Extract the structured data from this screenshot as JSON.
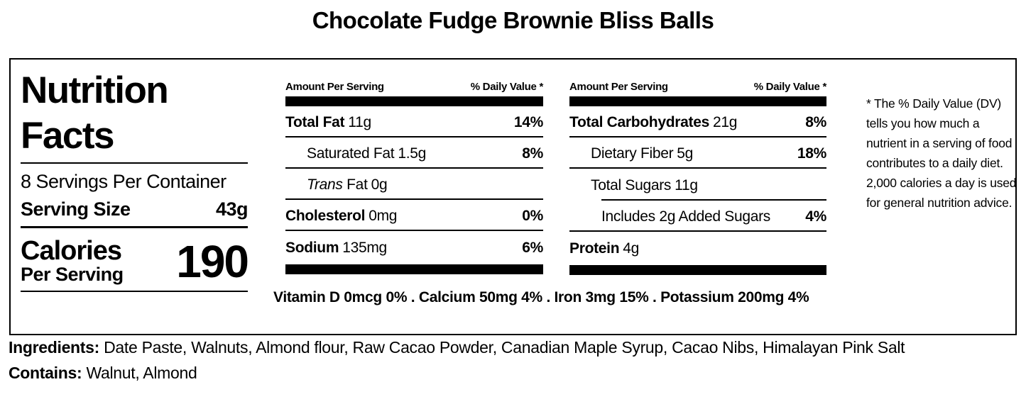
{
  "title": "Chocolate Fudge Brownie Bliss Balls",
  "panel": {
    "heading_line1": "Nutrition",
    "heading_line2": "Facts",
    "servings_per_container": "8 Servings Per Container",
    "serving_size": {
      "label": "Serving Size",
      "value": "43g"
    },
    "calories": {
      "label": "Calories",
      "sublabel": "Per Serving",
      "value": "190"
    }
  },
  "columns": [
    {
      "header_left": "Amount Per Serving",
      "header_right": "% Daily Value *",
      "rows": [
        {
          "name": "Total Fat",
          "amount": "11g",
          "dv": "14%"
        },
        {
          "name": "Saturated Fat",
          "amount": "1.5g",
          "dv": "8%"
        },
        {
          "name_italic": "Trans",
          "name": " Fat",
          "amount": "0g",
          "dv": ""
        },
        {
          "name": "Cholesterol",
          "amount": "0mg",
          "dv": "0%"
        },
        {
          "name": "Sodium",
          "amount": "135mg",
          "dv": "6%"
        }
      ]
    },
    {
      "header_left": "Amount Per Serving",
      "header_right": "% Daily Value *",
      "rows": [
        {
          "name": "Total Carbohydrates",
          "amount": "21g",
          "dv": "8%"
        },
        {
          "name": "Dietary Fiber",
          "amount": "5g",
          "dv": "18%"
        },
        {
          "name": "Total Sugars",
          "amount": "11g",
          "dv": ""
        },
        {
          "name": "Includes 2g Added Sugars",
          "amount": "",
          "dv": "4%"
        },
        {
          "name": "Protein",
          "amount": "4g",
          "dv": ""
        }
      ]
    }
  ],
  "micronutrients_line": "Vitamin D 0mcg 0% . Calcium 50mg 4% . Iron 3mg 15% . Potassium 200mg 4%",
  "footnote": "* The % Daily Value (DV) tells you how much a nutrient in a serving of food contributes to a daily diet. 2,000 calories a day is used for general nutrition advice.",
  "ingredients": {
    "label": "Ingredients:",
    "value": " Date Paste, Walnuts, Almond flour, Raw Cacao Powder, Canadian Maple Syrup, Cacao Nibs, Himalayan Pink Salt"
  },
  "contains": {
    "label": "Contains:",
    "value": " Walnut, Almond"
  },
  "colors": {
    "text": "#000000",
    "background": "#ffffff"
  }
}
